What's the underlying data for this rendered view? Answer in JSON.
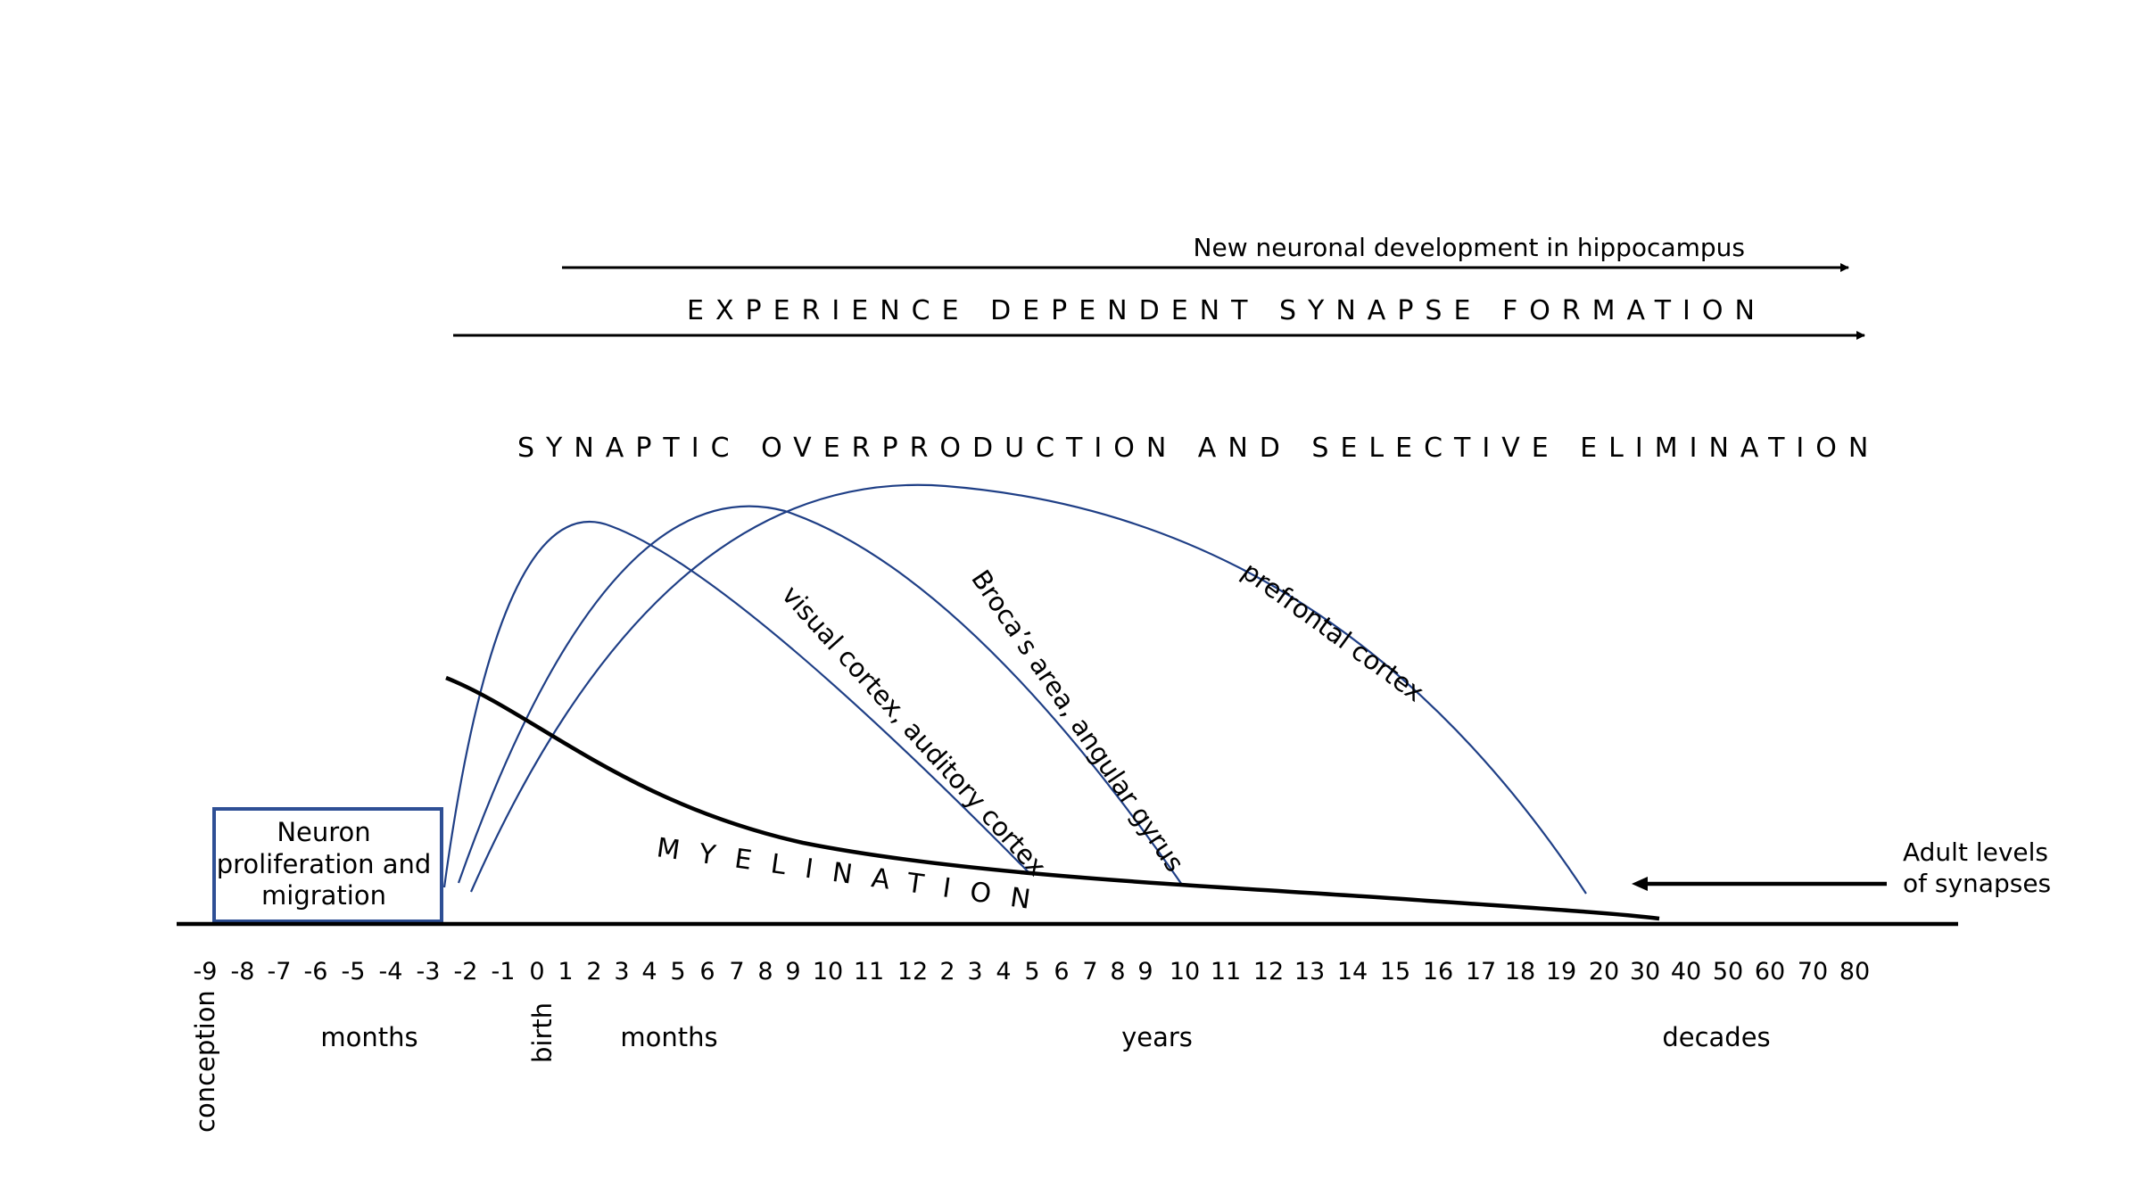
{
  "arrows": {
    "hippocampus_label": "New neuronal development in hippocampus",
    "experience_label": "EXPERIENCE DEPENDENT SYNAPSE FORMATION",
    "overproduction_label": "SYNAPTIC OVERPRODUCTION AND SELECTIVE ELIMINATION",
    "adult_label_line1": "Adult levels",
    "adult_label_line2": "of synapses"
  },
  "box": {
    "line1": "Neuron",
    "line2": "proliferation and",
    "line3": "migration"
  },
  "curves": {
    "visual": "visual cortex, auditory cortex",
    "broca": "Broca’s area, angular gyrus",
    "prefrontal": "prefrontal cortex",
    "myelination": "MYELINATION"
  },
  "axis": {
    "ticks": [
      "-9",
      "-8",
      "-7",
      "-6",
      "-5",
      "-4",
      "-3",
      "-2",
      "-1",
      "0",
      "1",
      "2",
      "3",
      "4",
      "5",
      "6",
      "7",
      "8",
      "9",
      "10",
      "11",
      "12",
      "2",
      "3",
      "4",
      "5",
      "6",
      "7",
      "8",
      "9",
      "10",
      "11",
      "12",
      "13",
      "14",
      "15",
      "16",
      "17",
      "18",
      "19",
      "20",
      "30",
      "40",
      "50",
      "60",
      "70",
      "80"
    ],
    "conception": "conception",
    "birth": "birth",
    "months_prenatal": "months",
    "months_postnatal": "months",
    "years": "years",
    "decades": "decades"
  },
  "colors": {
    "curve": "#1f3f86",
    "box_border": "#2e4f95",
    "line": "#000000"
  }
}
